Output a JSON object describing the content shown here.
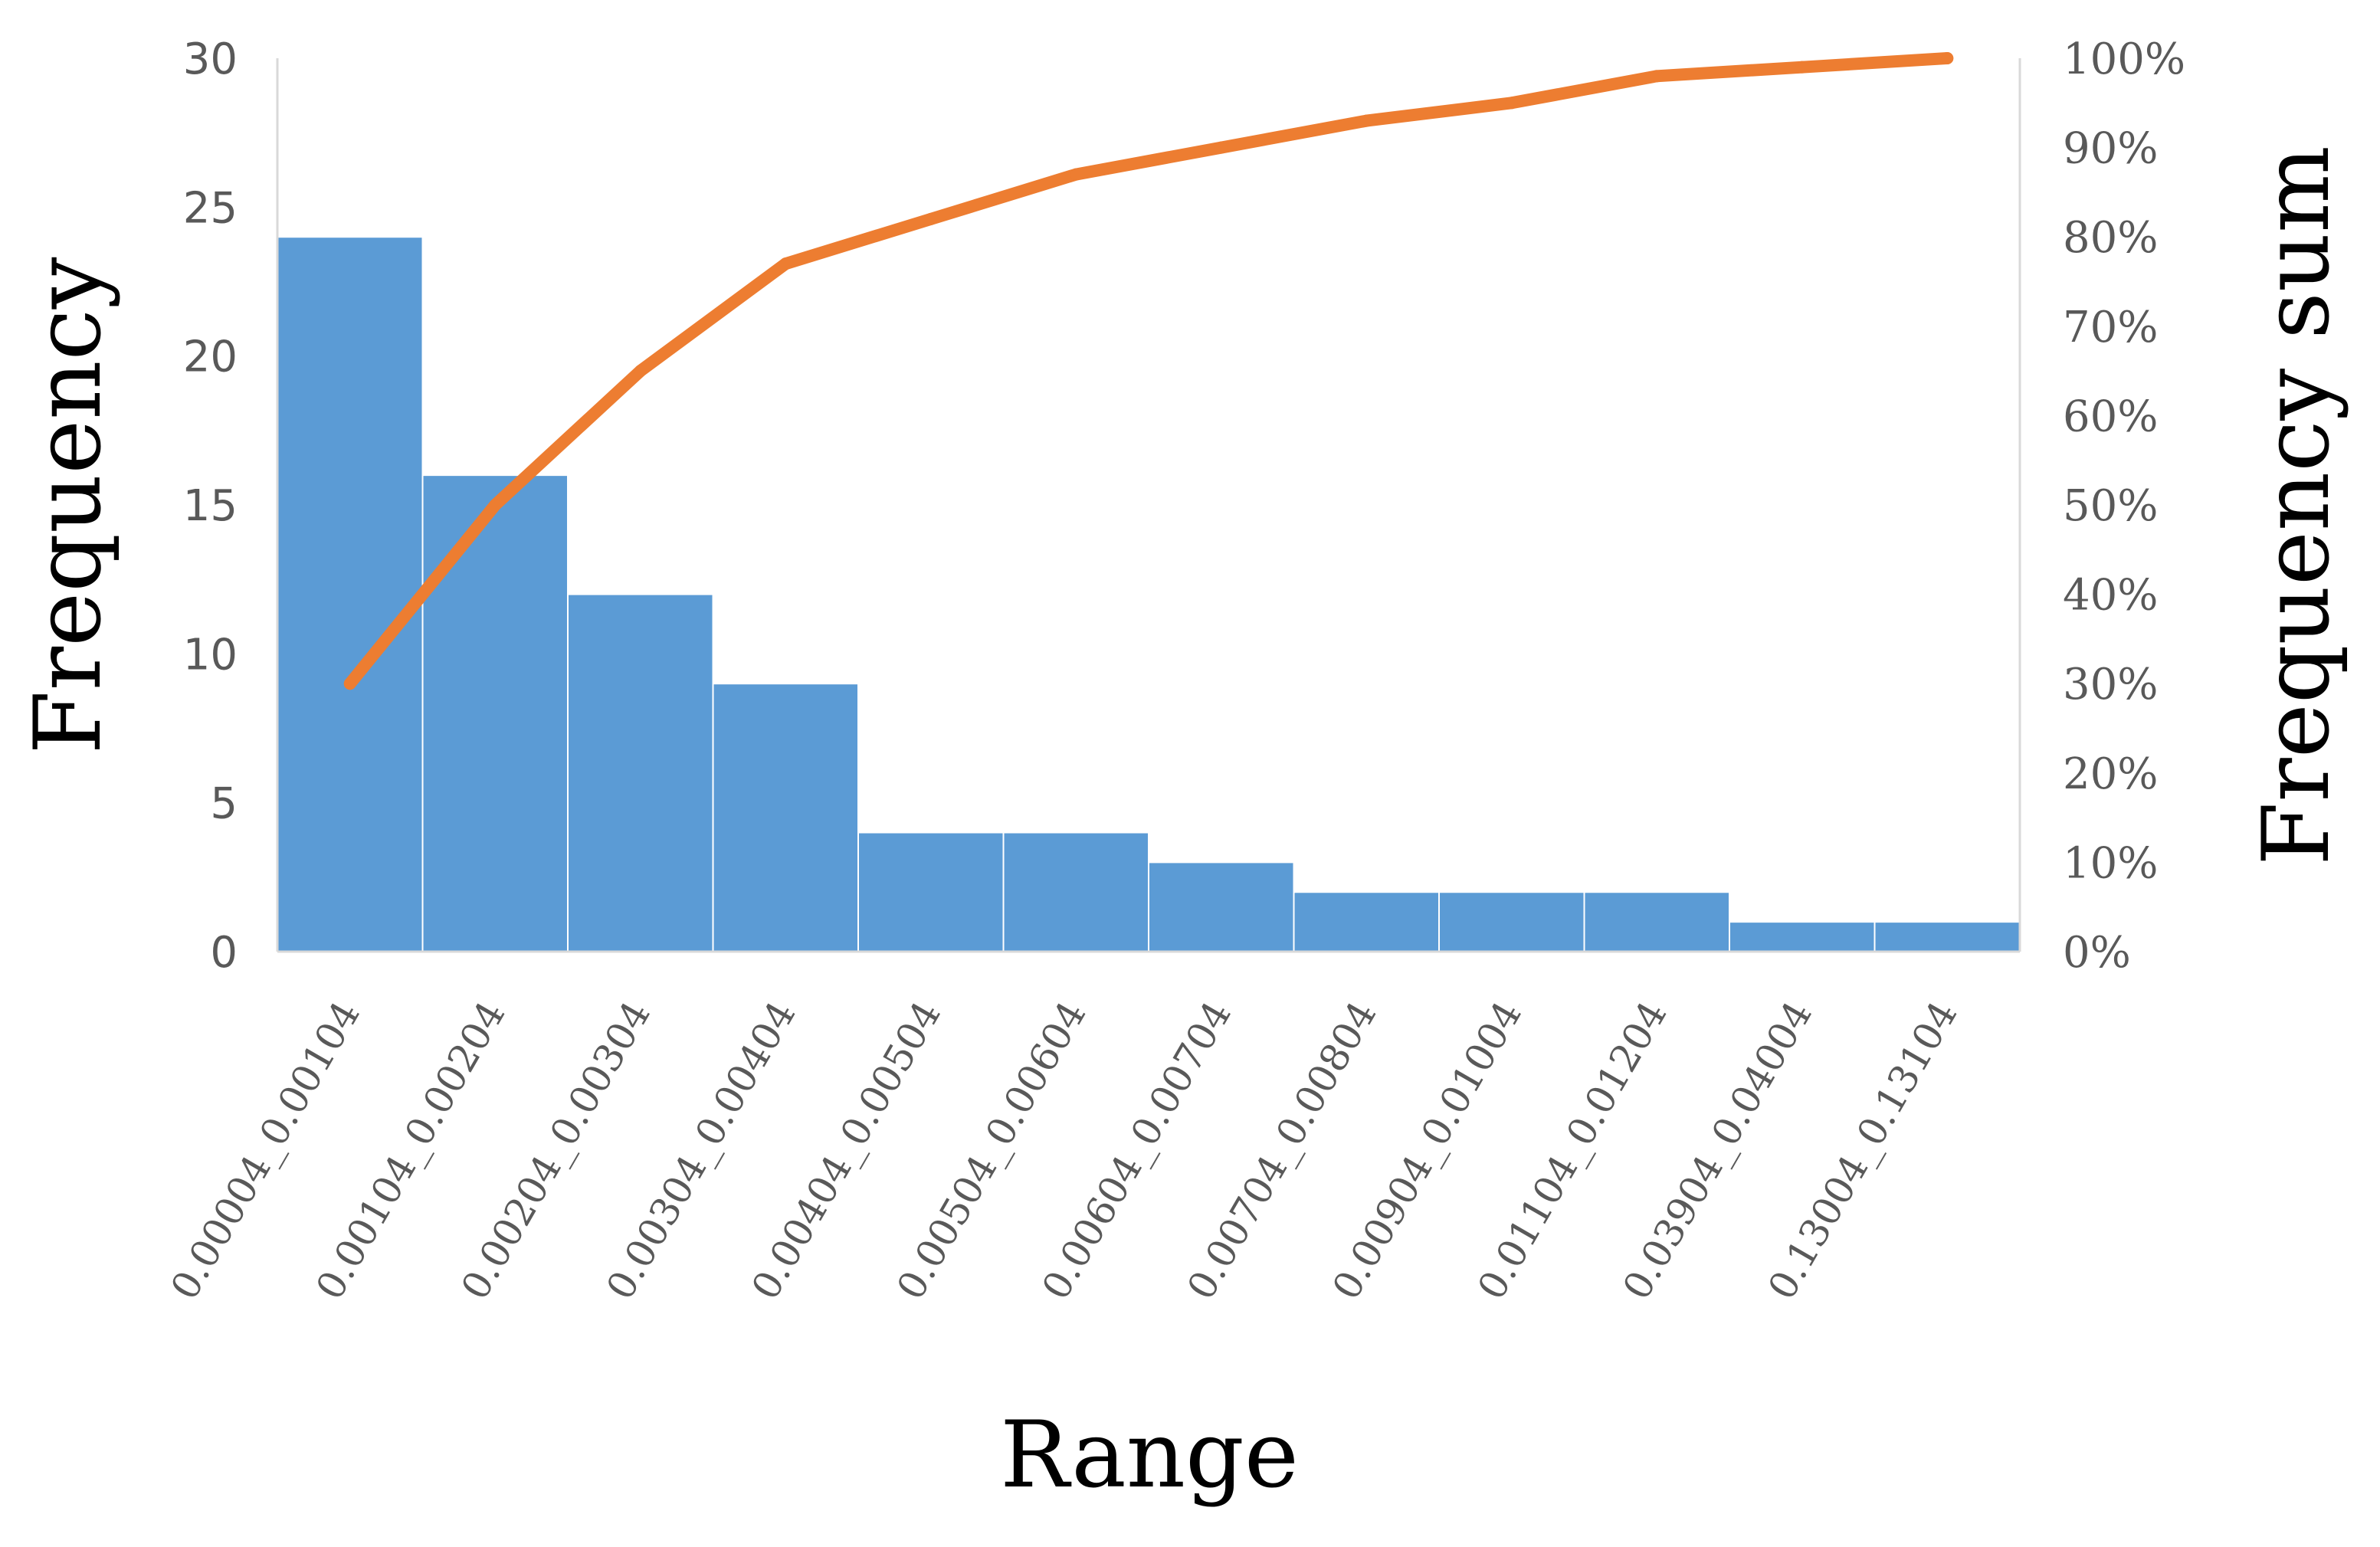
{
  "chart_data": {
    "type": "bar",
    "title": "",
    "xlabel": "Range",
    "ylabel": "Frequency",
    "y2label": "Frequency sum",
    "categories": [
      "0.00004_0.00104",
      "0.00104_0.00204",
      "0.00204_0.00304",
      "0.00304_0.00404",
      "0.00404_0.00504",
      "0.00504_0.00604",
      "0.00604_0.00704",
      "0.00704_0.00804",
      "0.00904_0.01004",
      "0.01104_0.01204",
      "0.03904_0.04004",
      "0.13004_0.13104"
    ],
    "series": [
      {
        "type": "bar",
        "axis": "left",
        "values": [
          24,
          16,
          12,
          9,
          4,
          4,
          3,
          2,
          2,
          2,
          1,
          1
        ]
      },
      {
        "type": "line",
        "axis": "right",
        "values": [
          30,
          50,
          65,
          77,
          82,
          87,
          90,
          93,
          95,
          98,
          99,
          100
        ]
      }
    ],
    "ylim": [
      0,
      30
    ],
    "y2lim": [
      0,
      100
    ],
    "yticks": [
      "0",
      "5",
      "10",
      "15",
      "20",
      "25",
      "30"
    ],
    "y2ticks": [
      "0%",
      "10%",
      "20%",
      "30%",
      "40%",
      "50%",
      "60%",
      "70%",
      "80%",
      "90%",
      "100%"
    ],
    "grid": false,
    "legend": "none",
    "colors": {
      "bar": "#5b9bd5",
      "line": "#ed7d31",
      "axis": "#d9d9d9",
      "tick_text": "#595959"
    }
  }
}
